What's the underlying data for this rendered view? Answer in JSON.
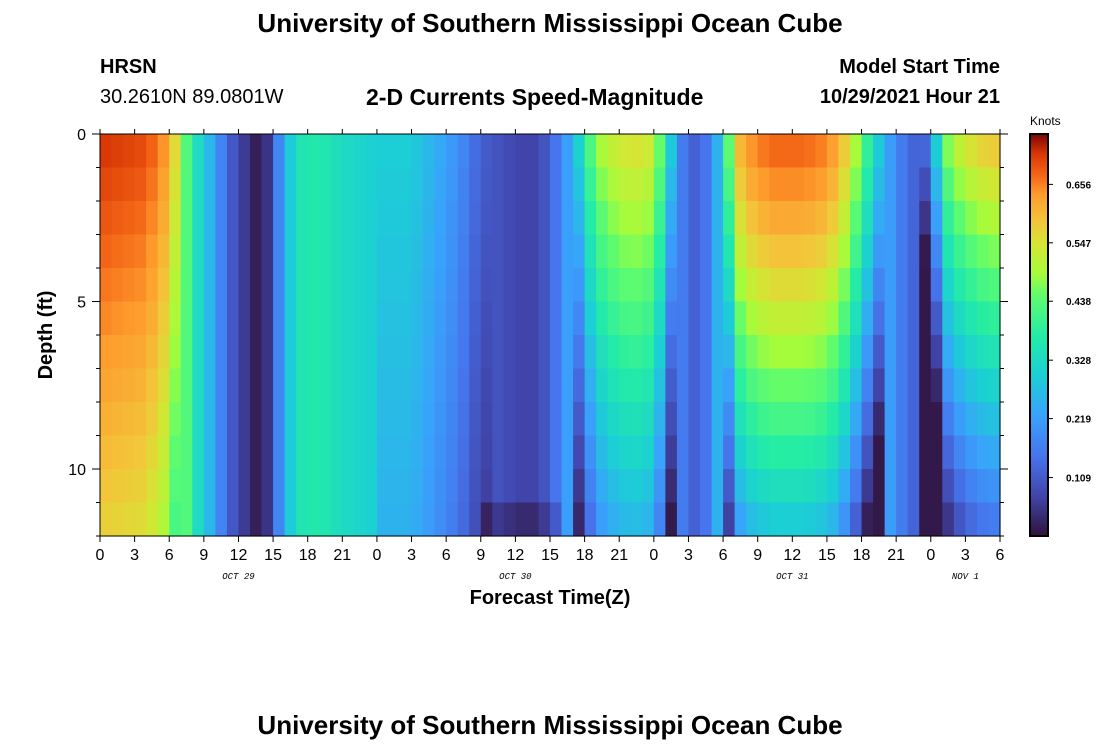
{
  "page": {
    "title_top": "University of Southern Mississippi Ocean Cube",
    "title_bottom": "University of Southern Mississippi Ocean Cube",
    "station": "HRSN",
    "coords": "30.2610N  89.0801W",
    "plot_title": "2-D Currents Speed-Magnitude",
    "model_start_label": "Model Start Time",
    "model_start_value": "10/29/2021 Hour 21"
  },
  "chart_data": {
    "type": "heatmap",
    "title": "2-D Currents Speed-Magnitude",
    "xlabel": "Forecast Time(Z)",
    "ylabel": "Depth (ft)",
    "x_range_hours": [
      0,
      78
    ],
    "y_range_ft": [
      0,
      12
    ],
    "x_tick_labels": [
      "0",
      "3",
      "6",
      "9",
      "12",
      "15",
      "18",
      "21",
      "0",
      "3",
      "6",
      "9",
      "12",
      "15",
      "18",
      "21",
      "0",
      "3",
      "6",
      "9",
      "12",
      "15",
      "18",
      "21",
      "0",
      "3",
      "6"
    ],
    "y_ticks": [
      0,
      5,
      10
    ],
    "y_tick_labels": [
      "0",
      "5",
      "10"
    ],
    "date_labels": [
      {
        "text": "OCT 29",
        "hour": 12
      },
      {
        "text": "OCT 30",
        "hour": 36
      },
      {
        "text": "OCT 31",
        "hour": 60
      },
      {
        "text": "NOV 1",
        "hour": 75
      }
    ],
    "colorbar": {
      "title": "Knots",
      "min": 0,
      "max": 0.75,
      "tick_values": [
        0.109,
        0.219,
        0.328,
        0.438,
        0.547,
        0.656
      ],
      "tick_labels": [
        "0.109",
        "0.219",
        "0.328",
        "0.438",
        "0.547",
        "0.656"
      ]
    },
    "grid": false
  }
}
